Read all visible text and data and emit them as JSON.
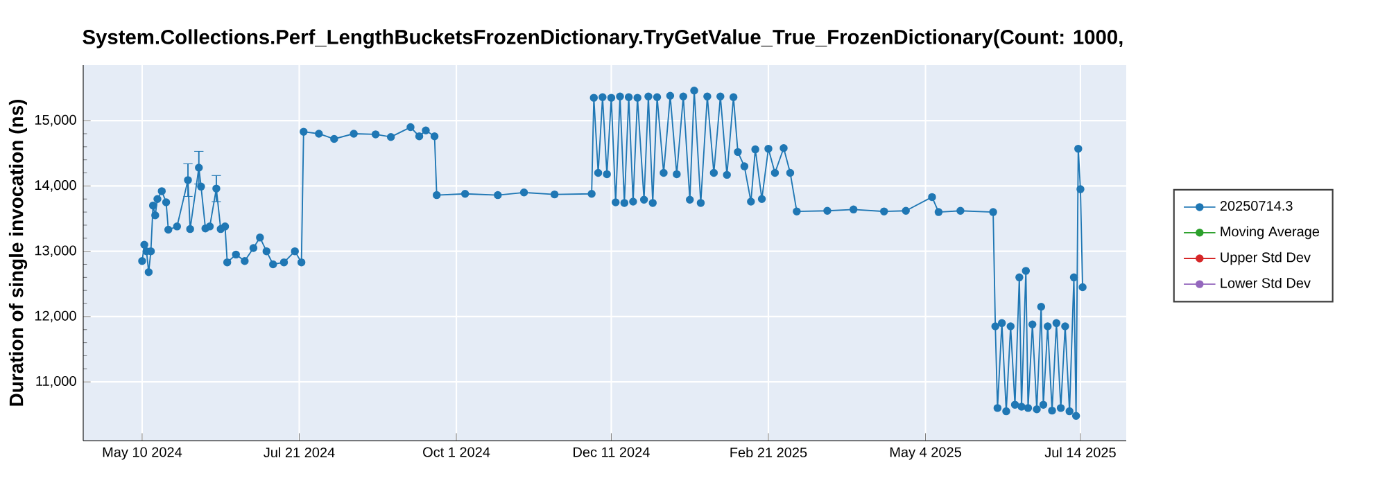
{
  "chart_data": {
    "type": "line",
    "title": "System.Collections.Perf_LengthBucketsFrozenDictionary.TryGetValue_True_FrozenDictionary(Count: 1000,",
    "ylabel": "Duration of single invocation (ns)",
    "x": [
      "2024-05-10",
      "2024-05-11",
      "2024-05-12",
      "2024-05-13",
      "2024-05-14",
      "2024-05-15",
      "2024-05-16",
      "2024-05-17",
      "2024-05-19",
      "2024-05-21",
      "2024-05-22",
      "2024-05-26",
      "2024-05-31",
      "2024-06-01",
      "2024-06-05",
      "2024-06-06",
      "2024-06-08",
      "2024-06-10",
      "2024-06-13",
      "2024-06-15",
      "2024-06-17",
      "2024-06-18",
      "2024-06-22",
      "2024-06-26",
      "2024-06-30",
      "2024-07-03",
      "2024-07-06",
      "2024-07-09",
      "2024-07-14",
      "2024-07-19",
      "2024-07-22",
      "2024-07-23",
      "2024-07-30",
      "2024-08-06",
      "2024-08-15",
      "2024-08-25",
      "2024-09-01",
      "2024-09-10",
      "2024-09-14",
      "2024-09-17",
      "2024-09-21",
      "2024-09-22",
      "2024-10-05",
      "2024-10-20",
      "2024-11-01",
      "2024-11-15",
      "2024-12-02",
      "2024-12-03",
      "2024-12-05",
      "2024-12-07",
      "2024-12-09",
      "2024-12-11",
      "2024-12-13",
      "2024-12-15",
      "2024-12-17",
      "2024-12-19",
      "2024-12-21",
      "2024-12-23",
      "2024-12-26",
      "2024-12-28",
      "2024-12-30",
      "2025-01-01",
      "2025-01-04",
      "2025-01-07",
      "2025-01-10",
      "2025-01-13",
      "2025-01-16",
      "2025-01-18",
      "2025-01-21",
      "2025-01-24",
      "2025-01-27",
      "2025-01-30",
      "2025-02-02",
      "2025-02-05",
      "2025-02-07",
      "2025-02-10",
      "2025-02-13",
      "2025-02-15",
      "2025-02-18",
      "2025-02-21",
      "2025-02-24",
      "2025-02-28",
      "2025-03-03",
      "2025-03-06",
      "2025-03-20",
      "2025-04-01",
      "2025-04-15",
      "2025-04-25",
      "2025-05-07",
      "2025-05-10",
      "2025-05-20",
      "2025-06-04",
      "2025-06-05",
      "2025-06-06",
      "2025-06-08",
      "2025-06-10",
      "2025-06-12",
      "2025-06-14",
      "2025-06-16",
      "2025-06-17",
      "2025-06-19",
      "2025-06-20",
      "2025-06-22",
      "2025-06-24",
      "2025-06-26",
      "2025-06-27",
      "2025-06-29",
      "2025-07-01",
      "2025-07-03",
      "2025-07-05",
      "2025-07-07",
      "2025-07-09",
      "2025-07-11",
      "2025-07-12",
      "2025-07-13",
      "2025-07-14",
      "2025-07-15"
    ],
    "series": [
      {
        "name": "20250714.3",
        "color": "#1f77b4",
        "values": [
          12850,
          13100,
          13000,
          12680,
          13000,
          13700,
          13550,
          13800,
          13920,
          13750,
          13330,
          13380,
          14090,
          13340,
          14280,
          13990,
          13350,
          13380,
          13960,
          13340,
          13380,
          12830,
          12950,
          12850,
          13050,
          13210,
          13000,
          12800,
          12830,
          13000,
          12830,
          14830,
          14800,
          14720,
          14800,
          14790,
          14750,
          14900,
          14760,
          14850,
          14760,
          13860,
          13880,
          13860,
          13900,
          13870,
          13880,
          15350,
          14200,
          15360,
          14180,
          15350,
          13750,
          15370,
          13740,
          15360,
          13760,
          15350,
          13790,
          15370,
          13740,
          15360,
          14200,
          15380,
          14180,
          15370,
          13790,
          15460,
          13740,
          15370,
          14200,
          15370,
          14170,
          15360,
          14520,
          14300,
          13760,
          14560,
          13800,
          14570,
          14200,
          14580,
          14200,
          13610,
          13620,
          13640,
          13610,
          13620,
          13830,
          13600,
          13620,
          13600,
          11850,
          10600,
          11900,
          10550,
          11850,
          10650,
          12600,
          10620,
          12700,
          10600,
          11880,
          10580,
          12150,
          10650,
          11850,
          10560,
          11900,
          10600,
          11850,
          10550,
          12600,
          10480,
          14570,
          13950,
          12450
        ],
        "errors": [
          null,
          null,
          null,
          null,
          null,
          null,
          null,
          null,
          null,
          null,
          null,
          null,
          250,
          null,
          250,
          null,
          null,
          null,
          200,
          null,
          null,
          null,
          null,
          null,
          null,
          null,
          null,
          null,
          null,
          null,
          null,
          null,
          null,
          null,
          null,
          null,
          null,
          null,
          null,
          null,
          null,
          null,
          null,
          null,
          null,
          null,
          null,
          null,
          null,
          null,
          null,
          null,
          null,
          null,
          null,
          null,
          null,
          null,
          null,
          null,
          null,
          null,
          null,
          null,
          null,
          null,
          null,
          null,
          null,
          null,
          null,
          null,
          null,
          null,
          null,
          null,
          null,
          null,
          null,
          null,
          null,
          null,
          null,
          null,
          null,
          null,
          null,
          null,
          null,
          null,
          null,
          null,
          null,
          null,
          null,
          null,
          null,
          null,
          null,
          null,
          null,
          null,
          null,
          null,
          null,
          null,
          null,
          null,
          null,
          null,
          null,
          null,
          null,
          null,
          null,
          null,
          null
        ]
      },
      {
        "name": "Moving Average",
        "color": "#2ca02c",
        "values": [
          null,
          null,
          null,
          null,
          null,
          null,
          null,
          null,
          null,
          null,
          null,
          null,
          null,
          null,
          null,
          null,
          null,
          null,
          null,
          null,
          null,
          null,
          null,
          null,
          null,
          null,
          null,
          null,
          null,
          null,
          null,
          null,
          null,
          null,
          null,
          null,
          null,
          null,
          null,
          null,
          null,
          null,
          null,
          null,
          null,
          null,
          null,
          null,
          null,
          null,
          null,
          null,
          null,
          null,
          null,
          null,
          null,
          null,
          null,
          null,
          null,
          null,
          null,
          null,
          null,
          null,
          null,
          null,
          null,
          null,
          null,
          null,
          null,
          null,
          null,
          null,
          null,
          null,
          null,
          null,
          null,
          null,
          null,
          null,
          null,
          null,
          null,
          null,
          null,
          null,
          null,
          null,
          null,
          null,
          null,
          null,
          null,
          null,
          null,
          null,
          null,
          null,
          null,
          null,
          null,
          null,
          null,
          null,
          null,
          null,
          null,
          null,
          null,
          null,
          null,
          null,
          null
        ]
      },
      {
        "name": "Upper Std Dev",
        "color": "#d62728",
        "values": [
          null,
          null,
          null,
          null,
          null,
          null,
          null,
          null,
          null,
          null,
          null,
          null,
          null,
          null,
          null,
          null,
          null,
          null,
          null,
          null,
          null,
          null,
          null,
          null,
          null,
          null,
          null,
          null,
          null,
          null,
          null,
          null,
          null,
          null,
          null,
          null,
          null,
          null,
          null,
          null,
          null,
          null,
          null,
          null,
          null,
          null,
          null,
          null,
          null,
          null,
          null,
          null,
          null,
          null,
          null,
          null,
          null,
          null,
          null,
          null,
          null,
          null,
          null,
          null,
          null,
          null,
          null,
          null,
          null,
          null,
          null,
          null,
          null,
          null,
          null,
          null,
          null,
          null,
          null,
          null,
          null,
          null,
          null,
          null,
          null,
          null,
          null,
          null,
          null,
          null,
          null,
          null,
          null,
          null,
          null,
          null,
          null,
          null,
          null,
          null,
          null,
          null,
          null,
          null,
          null,
          null,
          null,
          null,
          null,
          null,
          null,
          null,
          null,
          null,
          null,
          null,
          null
        ]
      },
      {
        "name": "Lower Std Dev",
        "color": "#9467bd",
        "values": [
          null,
          null,
          null,
          null,
          null,
          null,
          null,
          null,
          null,
          null,
          null,
          null,
          null,
          null,
          null,
          null,
          null,
          null,
          null,
          null,
          null,
          null,
          null,
          null,
          null,
          null,
          null,
          null,
          null,
          null,
          null,
          null,
          null,
          null,
          null,
          null,
          null,
          null,
          null,
          null,
          null,
          null,
          null,
          null,
          null,
          null,
          null,
          null,
          null,
          null,
          null,
          null,
          null,
          null,
          null,
          null,
          null,
          null,
          null,
          null,
          null,
          null,
          null,
          null,
          null,
          null,
          null,
          null,
          null,
          null,
          null,
          null,
          null,
          null,
          null,
          null,
          null,
          null,
          null,
          null,
          null,
          null,
          null,
          null,
          null,
          null,
          null,
          null,
          null,
          null,
          null,
          null,
          null,
          null,
          null,
          null,
          null,
          null,
          null,
          null,
          null,
          null,
          null,
          null,
          null,
          null,
          null,
          null,
          null,
          null,
          null,
          null,
          null,
          null,
          null,
          null,
          null
        ]
      }
    ],
    "xlim": [
      "2024-04-13",
      "2025-08-04"
    ],
    "xticks": [
      {
        "value": "2024-05-10",
        "label": "May 10 2024"
      },
      {
        "value": "2024-07-21",
        "label": "Jul 21 2024"
      },
      {
        "value": "2024-10-01",
        "label": "Oct 1 2024"
      },
      {
        "value": "2024-12-11",
        "label": "Dec 11 2024"
      },
      {
        "value": "2025-02-21",
        "label": "Feb 21 2025"
      },
      {
        "value": "2025-05-04",
        "label": "May 4 2025"
      },
      {
        "value": "2025-07-14",
        "label": "Jul 14 2025"
      }
    ],
    "ylim": [
      10100,
      15850
    ],
    "yticks": [
      {
        "value": 11000,
        "label": "11,000"
      },
      {
        "value": 12000,
        "label": "12,000"
      },
      {
        "value": 13000,
        "label": "13,000"
      },
      {
        "value": 14000,
        "label": "14,000"
      },
      {
        "value": 15000,
        "label": "15,000"
      }
    ],
    "grid": true,
    "legend": "right",
    "marker": "circle",
    "line_style": "solid"
  }
}
